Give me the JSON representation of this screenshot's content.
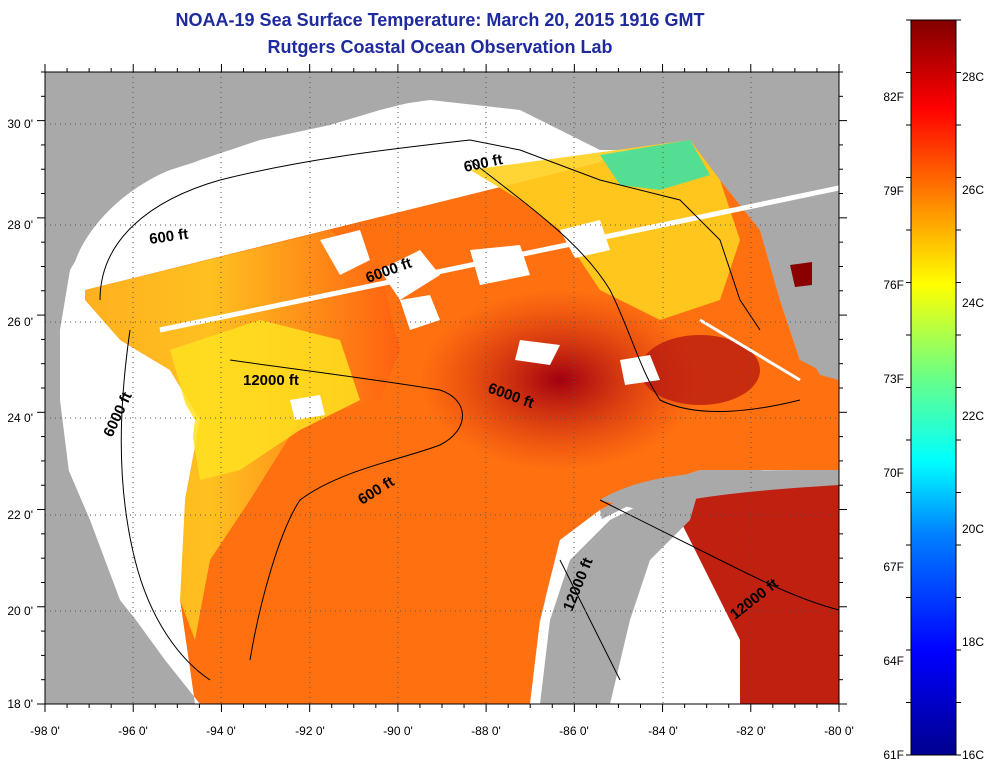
{
  "title": "NOAA-19 Sea Surface Temperature:  March 20, 2015 1916 GMT",
  "subtitle": "Rutgers Coastal Ocean Observation Lab",
  "map": {
    "lon_labels": [
      "-98 0'",
      "-96 0'",
      "-94 0'",
      "-92 0'",
      "-90 0'",
      "-88 0'",
      "-86 0'",
      "-84 0'",
      "-82 0'",
      "-80 0'"
    ],
    "lat_labels": [
      "30 0'",
      "28 0'",
      "26 0'",
      "24 0'",
      "22 0'",
      "20 0'",
      "18 0'"
    ],
    "lon_range": [
      -98,
      -80
    ],
    "lat_range": [
      18,
      31
    ],
    "contour_labels": [
      "600 ft",
      "600 ft",
      "6000 ft",
      "6000 ft",
      "12000 ft",
      "6000 ft",
      "600 ft",
      "12000 ft",
      "12000 ft"
    ],
    "colors": {
      "land": "#a9a9a9",
      "cloud": "#ffffff",
      "title": "#1f2a9e"
    }
  },
  "colorbar": {
    "fahrenheit_labels": [
      "82F",
      "79F",
      "76F",
      "73F",
      "70F",
      "67F",
      "64F",
      "61F"
    ],
    "celsius_labels": [
      "28C",
      "26C",
      "24C",
      "22C",
      "20C",
      "18C",
      "16C"
    ],
    "range_c": [
      16,
      29
    ]
  }
}
